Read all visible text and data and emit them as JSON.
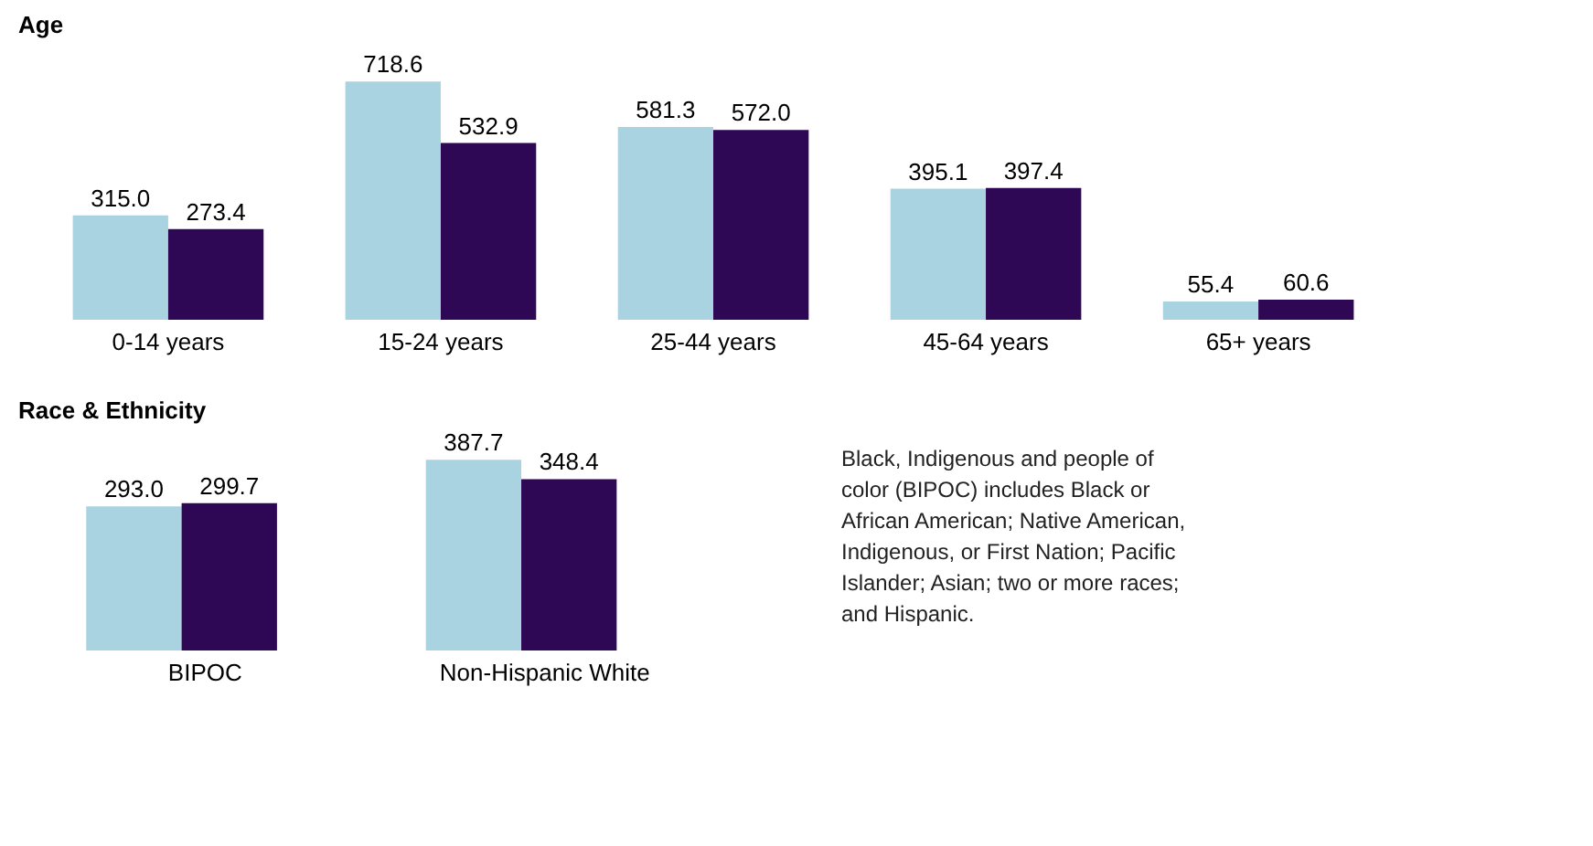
{
  "chart_data": [
    {
      "type": "bar",
      "title": "Age",
      "legend": false,
      "categories": [
        "0-14 years",
        "15-24 years",
        "25-44 years",
        "45-64 years",
        "65+ years"
      ],
      "series": [
        {
          "color": "#a9d3e0",
          "values": [
            315.0,
            718.6,
            581.3,
            395.1,
            55.4
          ],
          "value_labels": [
            "315.0",
            "718.6",
            "581.3",
            "395.1",
            "55.4"
          ]
        },
        {
          "color": "#2e0854",
          "values": [
            273.4,
            532.9,
            572.0,
            397.4,
            60.6
          ],
          "value_labels": [
            "273.4",
            "532.9",
            "572.0",
            "397.4",
            "60.6"
          ]
        }
      ]
    },
    {
      "type": "bar",
      "title": "Race & Ethnicity",
      "legend": false,
      "categories": [
        "BIPOC",
        "Non-Hispanic White"
      ],
      "series": [
        {
          "color": "#a9d3e0",
          "values": [
            293.0,
            387.7
          ],
          "value_labels": [
            "293.0",
            "387.7"
          ]
        },
        {
          "color": "#2e0854",
          "values": [
            299.7,
            348.4
          ],
          "value_labels": [
            "299.7",
            "348.4"
          ]
        }
      ],
      "annotations": [
        "Black, Indigenous and people of color (BIPOC) includes Black or African American; Native American, Indigenous, or First Nation; Pacific Islander; Asian; two or more races; and Hispanic."
      ]
    }
  ]
}
